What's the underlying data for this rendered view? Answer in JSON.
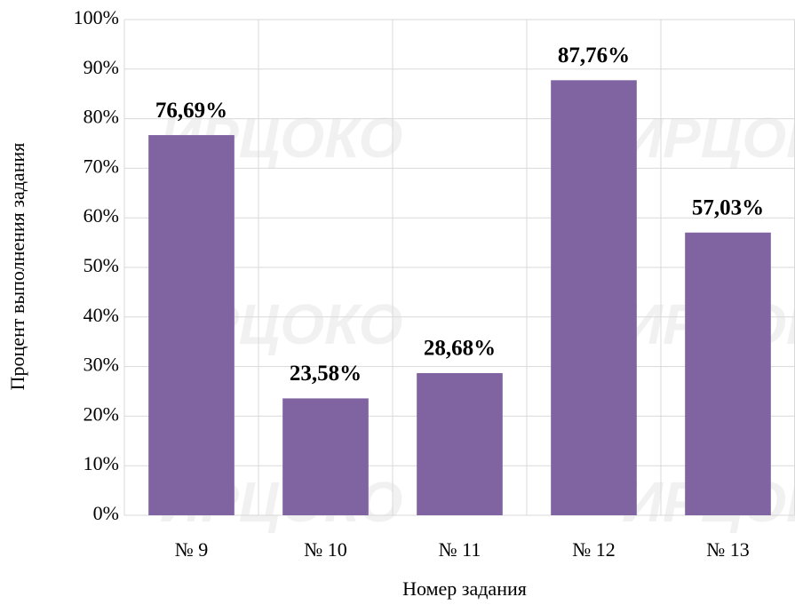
{
  "chart_data": {
    "type": "bar",
    "categories": [
      "№ 9",
      "№ 10",
      "№ 11",
      "№ 12",
      "№ 13"
    ],
    "values": [
      76.69,
      23.58,
      28.68,
      87.76,
      57.03
    ],
    "value_labels": [
      "76,69%",
      "23,58%",
      "28,68%",
      "87,76%",
      "57,03%"
    ],
    "color": "#8064a2",
    "xlabel": "Номер задания",
    "ylabel": "Процент выполнения задания",
    "ylim": [
      0,
      100
    ],
    "yticks": [
      {
        "value": 0,
        "label": "0%"
      },
      {
        "value": 10,
        "label": "10%"
      },
      {
        "value": 20,
        "label": "20%"
      },
      {
        "value": 30,
        "label": "30%"
      },
      {
        "value": 40,
        "label": "40%"
      },
      {
        "value": 50,
        "label": "50%"
      },
      {
        "value": 60,
        "label": "60%"
      },
      {
        "value": 70,
        "label": "70%"
      },
      {
        "value": 80,
        "label": "80%"
      },
      {
        "value": 90,
        "label": "90%"
      },
      {
        "value": 100,
        "label": "100%"
      }
    ],
    "grid": true,
    "watermark": "ИРЦОКО"
  }
}
